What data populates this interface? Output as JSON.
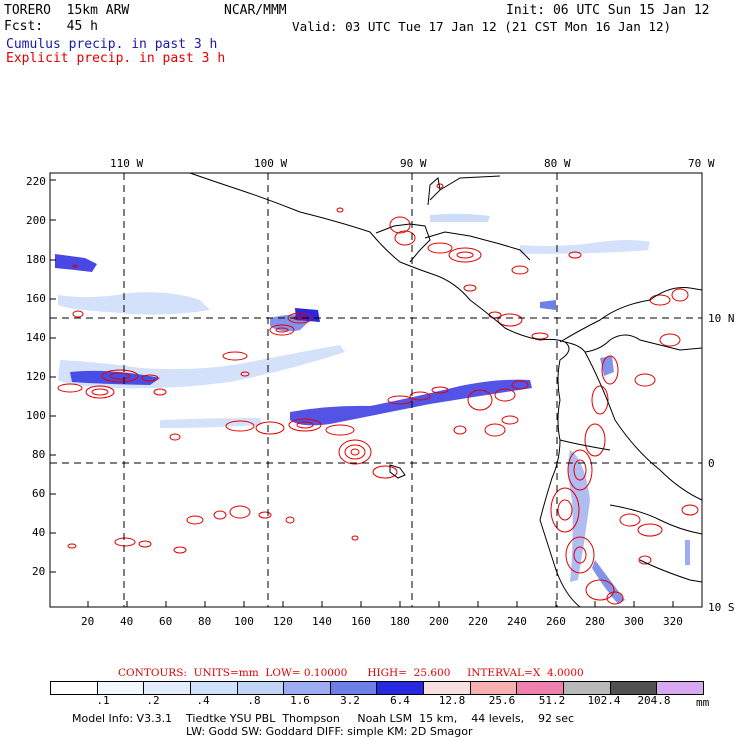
{
  "header": {
    "model_name": "TORERO  15km ARW",
    "org": "NCAR/MMM",
    "init": "Init: 06 UTC Sun 15 Jan 12",
    "fcst": "Fcst:   45 h",
    "valid": "Valid: 03 UTC Tue 17 Jan 12 (21 CST Mon 16 Jan 12)",
    "cumulus_label": "Cumulus precip. in past 3 h",
    "explicit_label": "Explicit precip. in past 3 h"
  },
  "map": {
    "top_lon_labels": [
      "110 W",
      "100 W",
      "90 W",
      "80 W",
      "70 W"
    ],
    "right_lat_labels": [
      "10 N",
      "0",
      "10 S"
    ],
    "y_ticks": [
      "220",
      "200",
      "180",
      "160",
      "140",
      "120",
      "100",
      "80",
      "60",
      "40",
      "20"
    ],
    "x_ticks": [
      "20",
      "40",
      "60",
      "80",
      "100",
      "120",
      "140",
      "160",
      "180",
      "200",
      "220",
      "240",
      "260",
      "280",
      "300",
      "320"
    ]
  },
  "contours": {
    "line": "CONTOURS:  UNITS=mm  LOW= 0.10000      HIGH=  25.600     INTERVAL=X  4.0000"
  },
  "legend": {
    "colors": [
      "#ffffff",
      "#f4f8ff",
      "#e4eeff",
      "#d0e2fa",
      "#c0d4f8",
      "#9cacf0",
      "#6c80e8",
      "#2828e0",
      "#f8e0e0",
      "#f8b0b0",
      "#f080b0",
      "#b8b8b8",
      "#505050",
      "#d8a8f0"
    ],
    "labels": [
      ".1",
      ".2",
      ".4",
      ".8",
      "1.6",
      "3.2",
      "6.4",
      "12.8",
      "25.6",
      "51.2",
      "102.4",
      "204.8"
    ],
    "unit": "mm"
  },
  "footer": {
    "line1": "Model Info: V3.3.1    Tiedtke YSU PBL  Thompson     Noah LSM  15 km,    44 levels,    92 sec",
    "line2": "LW: Godd SW: Goddard DIFF: simple KM: 2D Smagor"
  }
}
